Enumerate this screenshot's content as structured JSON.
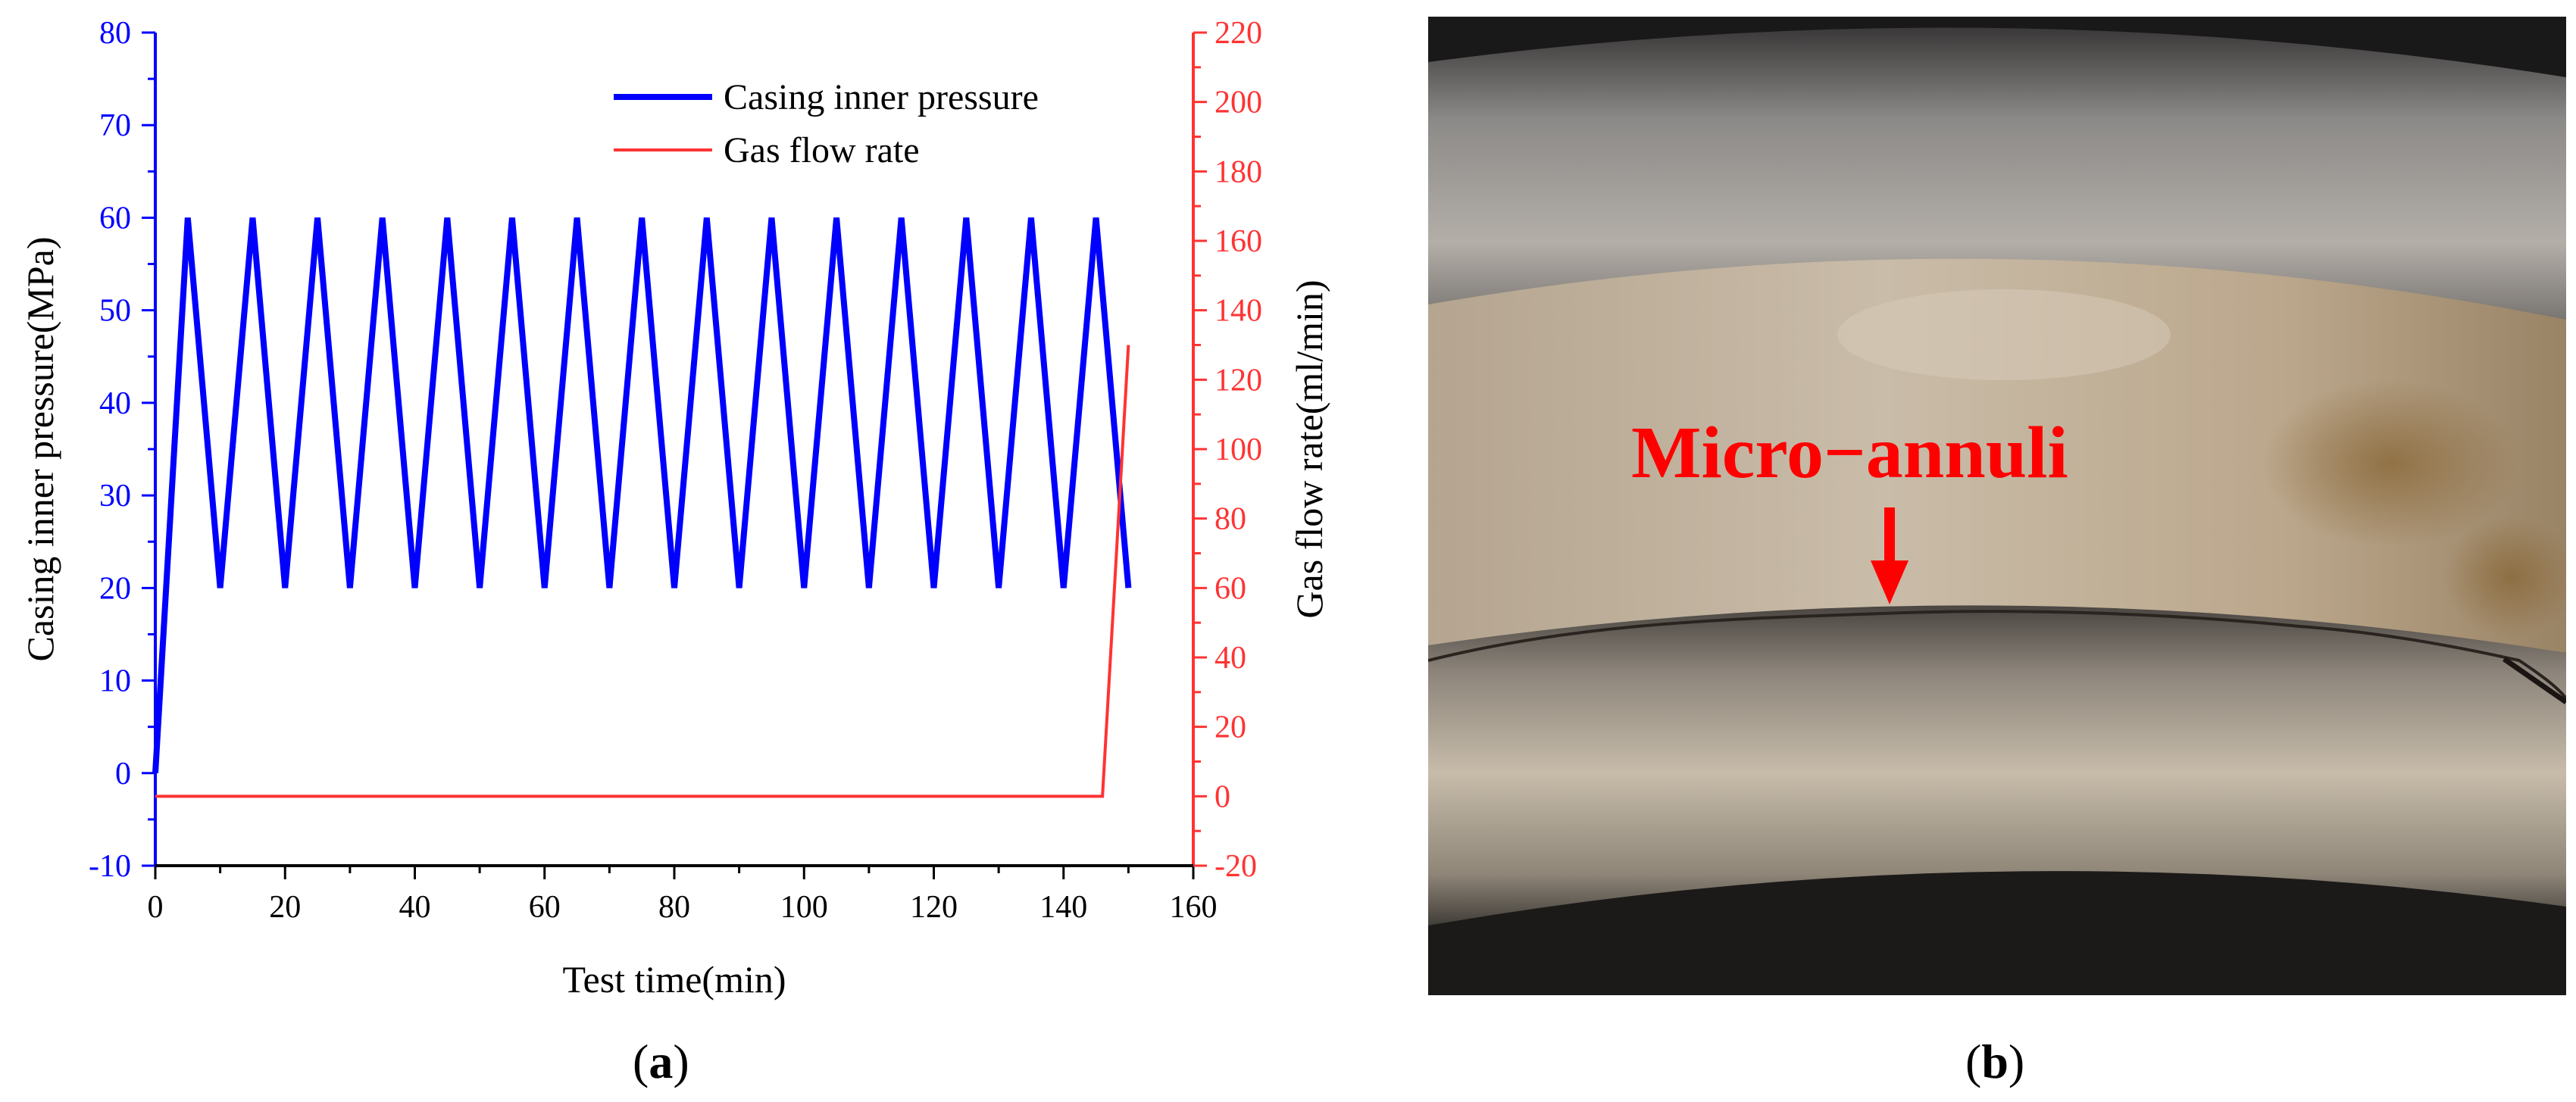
{
  "chart_data": {
    "type": "line",
    "xlabel": "Test time(min)",
    "ylabel_left": "Casing inner pressure(MPa)",
    "ylabel_right": "Gas flow rate(ml/min)",
    "xlim": [
      0,
      160
    ],
    "ylim_left": [
      -10,
      80
    ],
    "ylim_right": [
      -20,
      220
    ],
    "xticks": [
      0,
      20,
      40,
      60,
      80,
      100,
      120,
      140,
      160
    ],
    "yticks_left": [
      -10,
      0,
      10,
      20,
      30,
      40,
      50,
      60,
      70,
      80
    ],
    "yticks_right": [
      -20,
      0,
      20,
      40,
      60,
      80,
      100,
      120,
      140,
      160,
      180,
      200,
      220
    ],
    "grid": false,
    "legend_position": "top-right",
    "series": [
      {
        "name": "Casing inner pressure",
        "axis": "left",
        "color": "#0000ff",
        "x": [
          0,
          5,
          10,
          15,
          20,
          25,
          30,
          35,
          40,
          45,
          50,
          55,
          60,
          65,
          70,
          75,
          80,
          85,
          90,
          95,
          100,
          105,
          110,
          115,
          120,
          125,
          130,
          135,
          140,
          145,
          150
        ],
        "y": [
          0,
          60,
          20,
          60,
          20,
          60,
          20,
          60,
          20,
          60,
          20,
          60,
          20,
          60,
          20,
          60,
          20,
          60,
          20,
          60,
          20,
          60,
          20,
          60,
          20,
          60,
          20,
          60,
          20,
          60,
          20
        ]
      },
      {
        "name": "Gas flow rate",
        "axis": "right",
        "color": "#ff3333",
        "x": [
          0,
          146,
          150
        ],
        "y": [
          0,
          0,
          130
        ]
      }
    ],
    "left_axis_color": "#0000ff",
    "right_axis_color": "#ff3333"
  },
  "panels": {
    "a_label": "a",
    "b_label": "b"
  },
  "photo": {
    "annotation": "Micro−annuli",
    "annotation_color": "#ff0000"
  }
}
